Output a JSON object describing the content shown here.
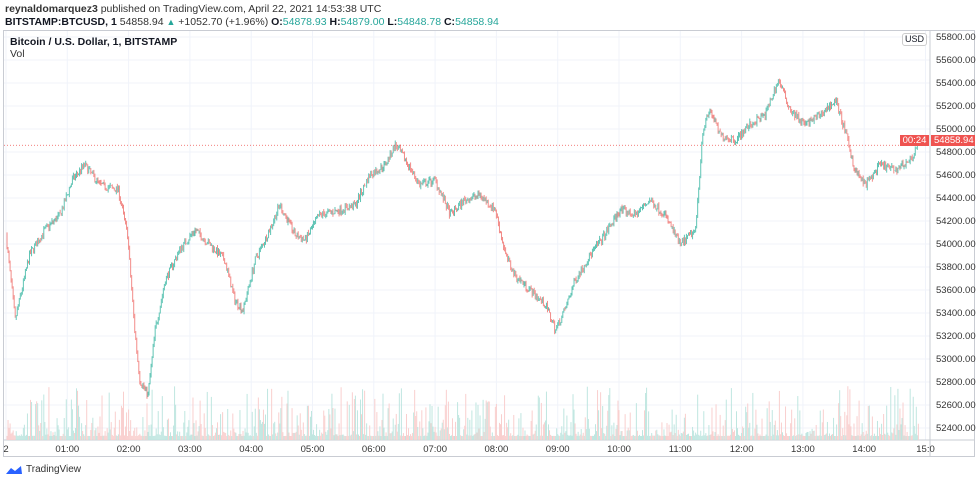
{
  "header": {
    "author": "reynaldomarquez3",
    "published_text": "published on TradingView.com, April 22, 2021 14:53:38 UTC",
    "symbol": "BITSTAMP:BTCUSD, 1",
    "last": "54858.94",
    "change": "+1052.70 (+1.96%)",
    "o_label": "O:",
    "o": "54878.93",
    "h_label": "H:",
    "h": "54879.00",
    "l_label": "L:",
    "l": "54848.78",
    "c_label": "C:",
    "c": "54858.94"
  },
  "chart_title": "Bitcoin / U.S. Dollar, 1, BITSTAMP",
  "volume_label": "Vol",
  "currency": "USD",
  "price_label": {
    "price": "54858.94",
    "countdown": "00:24"
  },
  "logo_text": "TradingView",
  "colors": {
    "up": "#26a69a",
    "down": "#ef5350",
    "last_price": "#ef5350"
  },
  "chart_data": {
    "type": "candlestick",
    "interval": "1 minute",
    "ylim": [
      52300,
      55850
    ],
    "y_ticks": [
      "55800.00",
      "55600.00",
      "55400.00",
      "55200.00",
      "55000.00",
      "54800.00",
      "54600.00",
      "54400.00",
      "54200.00",
      "54000.00",
      "53800.00",
      "53600.00",
      "53400.00",
      "53200.00",
      "53000.00",
      "52800.00",
      "52600.00",
      "52400.00"
    ],
    "x_ticks": [
      "2",
      "01:00",
      "02:00",
      "03:00",
      "04:00",
      "05:00",
      "06:00",
      "07:00",
      "08:00",
      "09:00",
      "10:00",
      "11:00",
      "12:00",
      "13:00",
      "14:00",
      "15:0"
    ],
    "grid": true,
    "approx_price_path": [
      [
        "00:00",
        54078
      ],
      [
        "00:09",
        53339
      ],
      [
        "00:23",
        53904
      ],
      [
        "00:38",
        54122
      ],
      [
        "00:53",
        54252
      ],
      [
        "01:05",
        54557
      ],
      [
        "01:17",
        54687
      ],
      [
        "01:32",
        54513
      ],
      [
        "01:50",
        54470
      ],
      [
        "01:59",
        54078
      ],
      [
        "02:06",
        53252
      ],
      [
        "02:11",
        52817
      ],
      [
        "02:19",
        52687
      ],
      [
        "02:26",
        53252
      ],
      [
        "02:36",
        53687
      ],
      [
        "02:50",
        53948
      ],
      [
        "03:05",
        54122
      ],
      [
        "03:20",
        53991
      ],
      [
        "03:34",
        53861
      ],
      [
        "03:44",
        53513
      ],
      [
        "03:52",
        53426
      ],
      [
        "04:04",
        53861
      ],
      [
        "04:18",
        54122
      ],
      [
        "04:28",
        54339
      ],
      [
        "04:43",
        54078
      ],
      [
        "04:53",
        54035
      ],
      [
        "05:07",
        54252
      ],
      [
        "05:27",
        54296
      ],
      [
        "05:42",
        54339
      ],
      [
        "05:56",
        54600
      ],
      [
        "06:11",
        54687
      ],
      [
        "06:21",
        54861
      ],
      [
        "06:31",
        54730
      ],
      [
        "06:45",
        54513
      ],
      [
        "07:00",
        54557
      ],
      [
        "07:15",
        54252
      ],
      [
        "07:29",
        54383
      ],
      [
        "07:44",
        54426
      ],
      [
        "07:59",
        54296
      ],
      [
        "08:09",
        53904
      ],
      [
        "08:18",
        53730
      ],
      [
        "08:33",
        53600
      ],
      [
        "08:48",
        53470
      ],
      [
        "08:58",
        53252
      ],
      [
        "09:07",
        53426
      ],
      [
        "09:17",
        53687
      ],
      [
        "09:32",
        53904
      ],
      [
        "09:46",
        54078
      ],
      [
        "10:01",
        54296
      ],
      [
        "10:16",
        54252
      ],
      [
        "10:30",
        54383
      ],
      [
        "10:45",
        54252
      ],
      [
        "11:00",
        53991
      ],
      [
        "11:15",
        54122
      ],
      [
        "11:22",
        54991
      ],
      [
        "11:29",
        55165
      ],
      [
        "11:39",
        54948
      ],
      [
        "11:54",
        54904
      ],
      [
        "12:08",
        55035
      ],
      [
        "12:23",
        55122
      ],
      [
        "12:36",
        55426
      ],
      [
        "12:48",
        55165
      ],
      [
        "13:02",
        55035
      ],
      [
        "13:17",
        55122
      ],
      [
        "13:32",
        55252
      ],
      [
        "13:41",
        54991
      ],
      [
        "13:51",
        54643
      ],
      [
        "14:01",
        54513
      ],
      [
        "14:16",
        54687
      ],
      [
        "14:30",
        54643
      ],
      [
        "14:45",
        54730
      ],
      [
        "14:53",
        54858.94
      ]
    ]
  }
}
